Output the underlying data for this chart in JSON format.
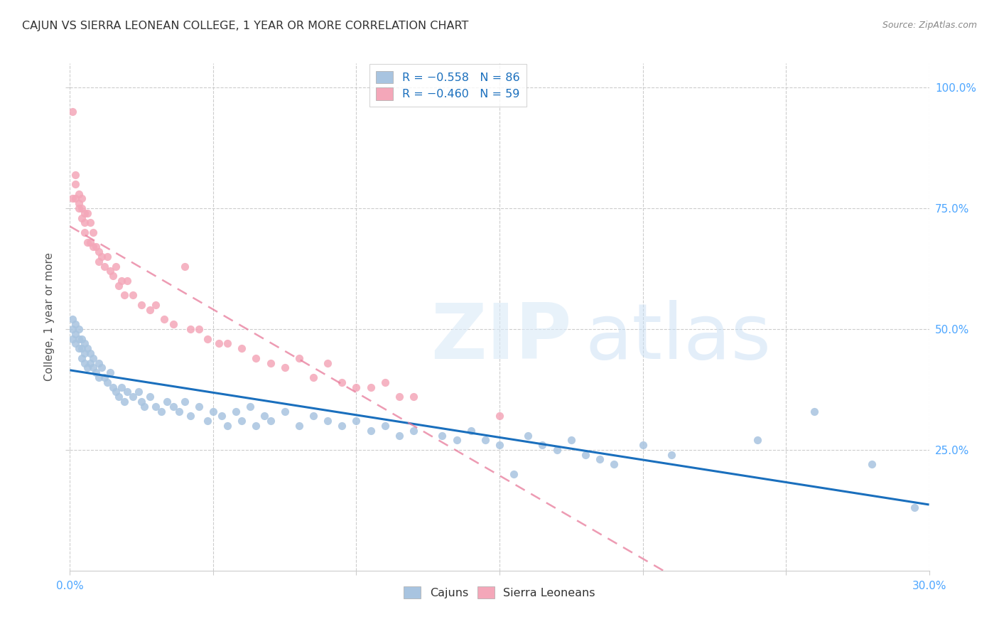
{
  "title": "CAJUN VS SIERRA LEONEAN COLLEGE, 1 YEAR OR MORE CORRELATION CHART",
  "source": "Source: ZipAtlas.com",
  "ylabel": "College, 1 year or more",
  "watermark_zip": "ZIP",
  "watermark_atlas": "atlas",
  "cajun_color": "#a8c4e0",
  "sierra_color": "#f4a7b9",
  "cajun_line_color": "#1a6fbd",
  "sierra_line_color": "#e87a9a",
  "legend_R_cajun": "R = −0.558",
  "legend_N_cajun": "N = 86",
  "legend_R_sierra": "R = −0.460",
  "legend_N_sierra": "N = 59",
  "cajun_points": [
    [
      0.001,
      0.5
    ],
    [
      0.001,
      0.52
    ],
    [
      0.001,
      0.48
    ],
    [
      0.002,
      0.49
    ],
    [
      0.002,
      0.51
    ],
    [
      0.002,
      0.47
    ],
    [
      0.003,
      0.5
    ],
    [
      0.003,
      0.46
    ],
    [
      0.003,
      0.48
    ],
    [
      0.004,
      0.48
    ],
    [
      0.004,
      0.44
    ],
    [
      0.004,
      0.46
    ],
    [
      0.005,
      0.47
    ],
    [
      0.005,
      0.45
    ],
    [
      0.005,
      0.43
    ],
    [
      0.006,
      0.46
    ],
    [
      0.006,
      0.42
    ],
    [
      0.007,
      0.45
    ],
    [
      0.007,
      0.43
    ],
    [
      0.008,
      0.44
    ],
    [
      0.008,
      0.42
    ],
    [
      0.009,
      0.41
    ],
    [
      0.01,
      0.43
    ],
    [
      0.01,
      0.4
    ],
    [
      0.011,
      0.42
    ],
    [
      0.012,
      0.4
    ],
    [
      0.013,
      0.39
    ],
    [
      0.014,
      0.41
    ],
    [
      0.015,
      0.38
    ],
    [
      0.016,
      0.37
    ],
    [
      0.017,
      0.36
    ],
    [
      0.018,
      0.38
    ],
    [
      0.019,
      0.35
    ],
    [
      0.02,
      0.37
    ],
    [
      0.022,
      0.36
    ],
    [
      0.024,
      0.37
    ],
    [
      0.025,
      0.35
    ],
    [
      0.026,
      0.34
    ],
    [
      0.028,
      0.36
    ],
    [
      0.03,
      0.34
    ],
    [
      0.032,
      0.33
    ],
    [
      0.034,
      0.35
    ],
    [
      0.036,
      0.34
    ],
    [
      0.038,
      0.33
    ],
    [
      0.04,
      0.35
    ],
    [
      0.042,
      0.32
    ],
    [
      0.045,
      0.34
    ],
    [
      0.048,
      0.31
    ],
    [
      0.05,
      0.33
    ],
    [
      0.053,
      0.32
    ],
    [
      0.055,
      0.3
    ],
    [
      0.058,
      0.33
    ],
    [
      0.06,
      0.31
    ],
    [
      0.063,
      0.34
    ],
    [
      0.065,
      0.3
    ],
    [
      0.068,
      0.32
    ],
    [
      0.07,
      0.31
    ],
    [
      0.075,
      0.33
    ],
    [
      0.08,
      0.3
    ],
    [
      0.085,
      0.32
    ],
    [
      0.09,
      0.31
    ],
    [
      0.095,
      0.3
    ],
    [
      0.1,
      0.31
    ],
    [
      0.105,
      0.29
    ],
    [
      0.11,
      0.3
    ],
    [
      0.115,
      0.28
    ],
    [
      0.12,
      0.29
    ],
    [
      0.13,
      0.28
    ],
    [
      0.135,
      0.27
    ],
    [
      0.14,
      0.29
    ],
    [
      0.145,
      0.27
    ],
    [
      0.15,
      0.26
    ],
    [
      0.155,
      0.2
    ],
    [
      0.16,
      0.28
    ],
    [
      0.165,
      0.26
    ],
    [
      0.17,
      0.25
    ],
    [
      0.175,
      0.27
    ],
    [
      0.18,
      0.24
    ],
    [
      0.185,
      0.23
    ],
    [
      0.19,
      0.22
    ],
    [
      0.2,
      0.26
    ],
    [
      0.21,
      0.24
    ],
    [
      0.24,
      0.27
    ],
    [
      0.26,
      0.33
    ],
    [
      0.28,
      0.22
    ],
    [
      0.295,
      0.13
    ]
  ],
  "sierra_points": [
    [
      0.001,
      0.95
    ],
    [
      0.001,
      0.77
    ],
    [
      0.002,
      0.8
    ],
    [
      0.002,
      0.77
    ],
    [
      0.002,
      0.82
    ],
    [
      0.003,
      0.78
    ],
    [
      0.003,
      0.76
    ],
    [
      0.003,
      0.75
    ],
    [
      0.004,
      0.75
    ],
    [
      0.004,
      0.73
    ],
    [
      0.004,
      0.77
    ],
    [
      0.005,
      0.74
    ],
    [
      0.005,
      0.72
    ],
    [
      0.005,
      0.7
    ],
    [
      0.006,
      0.74
    ],
    [
      0.006,
      0.68
    ],
    [
      0.007,
      0.72
    ],
    [
      0.007,
      0.68
    ],
    [
      0.008,
      0.67
    ],
    [
      0.008,
      0.7
    ],
    [
      0.009,
      0.67
    ],
    [
      0.01,
      0.66
    ],
    [
      0.01,
      0.64
    ],
    [
      0.011,
      0.65
    ],
    [
      0.012,
      0.63
    ],
    [
      0.013,
      0.65
    ],
    [
      0.014,
      0.62
    ],
    [
      0.015,
      0.61
    ],
    [
      0.016,
      0.63
    ],
    [
      0.017,
      0.59
    ],
    [
      0.018,
      0.6
    ],
    [
      0.019,
      0.57
    ],
    [
      0.02,
      0.6
    ],
    [
      0.022,
      0.57
    ],
    [
      0.025,
      0.55
    ],
    [
      0.028,
      0.54
    ],
    [
      0.03,
      0.55
    ],
    [
      0.033,
      0.52
    ],
    [
      0.036,
      0.51
    ],
    [
      0.04,
      0.63
    ],
    [
      0.042,
      0.5
    ],
    [
      0.045,
      0.5
    ],
    [
      0.048,
      0.48
    ],
    [
      0.052,
      0.47
    ],
    [
      0.055,
      0.47
    ],
    [
      0.06,
      0.46
    ],
    [
      0.065,
      0.44
    ],
    [
      0.07,
      0.43
    ],
    [
      0.075,
      0.42
    ],
    [
      0.08,
      0.44
    ],
    [
      0.085,
      0.4
    ],
    [
      0.09,
      0.43
    ],
    [
      0.095,
      0.39
    ],
    [
      0.1,
      0.38
    ],
    [
      0.105,
      0.38
    ],
    [
      0.11,
      0.39
    ],
    [
      0.115,
      0.36
    ],
    [
      0.12,
      0.36
    ],
    [
      0.15,
      0.32
    ]
  ],
  "x_range": [
    0.0,
    0.3
  ],
  "y_range": [
    0.0,
    1.05
  ],
  "x_tick_positions": [
    0.0,
    0.05,
    0.1,
    0.15,
    0.2,
    0.25,
    0.3
  ],
  "y_tick_vals": [
    0.25,
    0.5,
    0.75,
    1.0
  ],
  "y_tick_labels": [
    "25.0%",
    "50.0%",
    "75.0%",
    "100.0%"
  ]
}
